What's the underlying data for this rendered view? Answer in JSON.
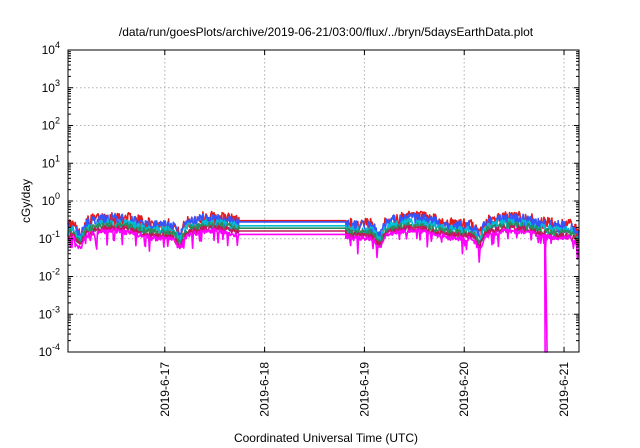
{
  "chart_data": {
    "type": "line",
    "title": "/data/run/goesPlots/archive/2019-06-21/03:00/flux/../bryn/5daysEarthData.plot",
    "xlabel": "Coordinated Universal Time (UTC)",
    "ylabel": "cGy/day",
    "y_scale": "log",
    "ylim": [
      0.0001,
      10000
    ],
    "xlim_days": [
      0,
      5.12
    ],
    "grid": true,
    "legend": "none",
    "y_ticks": [
      {
        "value": 0.0001,
        "base": "10",
        "exp": "-4"
      },
      {
        "value": 0.001,
        "base": "10",
        "exp": "-3"
      },
      {
        "value": 0.01,
        "base": "10",
        "exp": "-2"
      },
      {
        "value": 0.1,
        "base": "10",
        "exp": "-1"
      },
      {
        "value": 1,
        "base": "10",
        "exp": "0"
      },
      {
        "value": 10,
        "base": "10",
        "exp": "1"
      },
      {
        "value": 100,
        "base": "10",
        "exp": "2"
      },
      {
        "value": 1000,
        "base": "10",
        "exp": "3"
      },
      {
        "value": 10000,
        "base": "10",
        "exp": "4"
      }
    ],
    "x_ticks": [
      {
        "day": 0.97,
        "label": "2019-6-17"
      },
      {
        "day": 1.97,
        "label": "2019-6-18"
      },
      {
        "day": 2.97,
        "label": "2019-6-19"
      },
      {
        "day": 3.97,
        "label": "2019-6-20"
      },
      {
        "day": 4.97,
        "label": "2019-6-21"
      }
    ],
    "gap_days": [
      1.72,
      2.78
    ],
    "series": [
      {
        "color": "#e41a1c",
        "base": 0.3,
        "amp": 1.45,
        "gap": 0.3
      },
      {
        "color": "#3355ff",
        "base": 0.27,
        "amp": 1.4,
        "gap": 0.28
      },
      {
        "color": "#00bcd4",
        "base": 0.21,
        "amp": 1.3,
        "gap": 0.22
      },
      {
        "color": "#2e8b57",
        "base": 0.18,
        "amp": 1.25,
        "gap": 0.19
      },
      {
        "color": "#c2185b",
        "base": 0.15,
        "amp": 1.2,
        "gap": 0.16
      },
      {
        "color": "#ff00ff",
        "base": 0.13,
        "amp": 1.15,
        "gap": 0.13
      }
    ]
  }
}
